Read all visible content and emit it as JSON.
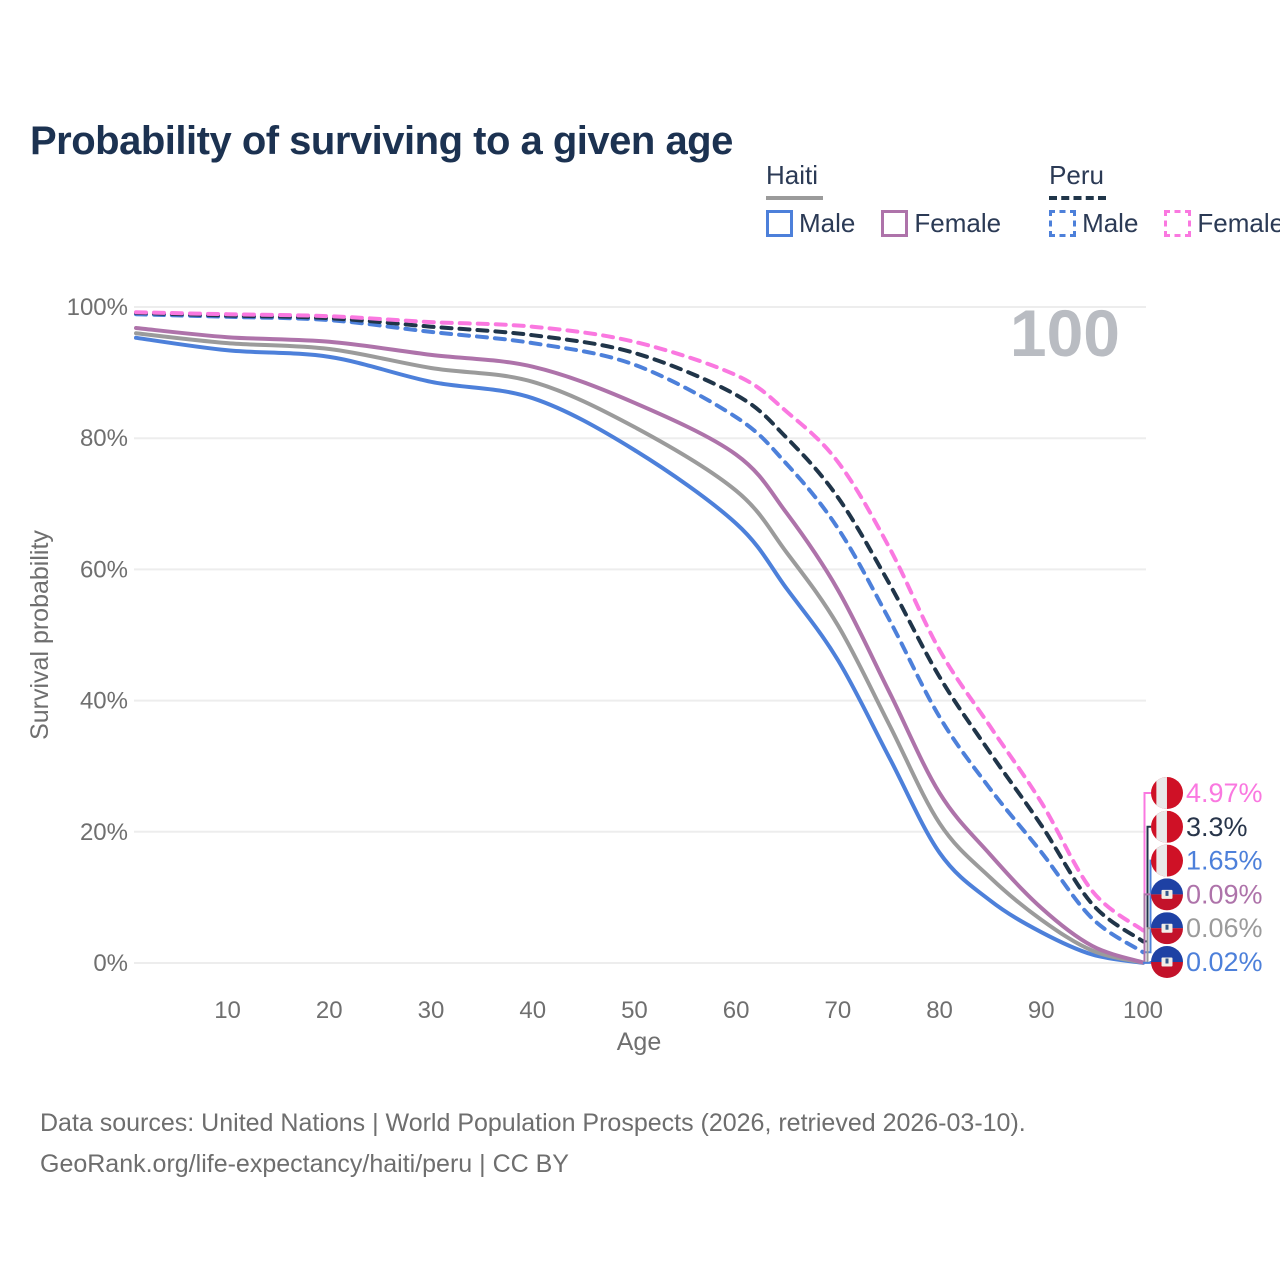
{
  "title": "Probability of surviving to a given age",
  "watermark": "100",
  "legend": {
    "groups": [
      {
        "label": "Haiti",
        "line_style": "solid",
        "line_color": "#9b9b9b",
        "items": [
          {
            "label": "Male",
            "style": "solid",
            "color": "#4d80da"
          },
          {
            "label": "Female",
            "style": "solid",
            "color": "#ae73aa"
          }
        ]
      },
      {
        "label": "Peru",
        "line_style": "dashed",
        "line_color": "#203549",
        "items": [
          {
            "label": "Male",
            "style": "dashed",
            "color": "#4d80da"
          },
          {
            "label": "Female",
            "style": "dashed",
            "color": "#fa78e0"
          }
        ]
      }
    ]
  },
  "footer": {
    "line1": "Data sources: United Nations | World Population Prospects (2026, retrieved 2026-03-10).",
    "line2": "GeoRank.org/life-expectancy/haiti/peru | CC BY"
  },
  "colors": {
    "title": "#1c3251",
    "axis_text": "#6f6f6f",
    "gridline": "#ededed",
    "watermark": "#b9bcc2",
    "haiti_male": "#4d80da",
    "haiti_total": "#9b9b9b",
    "haiti_female": "#ae73aa",
    "peru_male": "#4d80da",
    "peru_total": "#203549",
    "peru_female": "#fa78e0",
    "flag_peru_red": "#cf1126",
    "flag_peru_white": "#e9e9e9",
    "flag_haiti_blue": "#1e41a4",
    "flag_haiti_red": "#c3122a"
  },
  "chart_data": {
    "type": "line",
    "title": "Probability of surviving to a given age",
    "xlabel": "Age",
    "ylabel": "Survival probability",
    "x_range": [
      1,
      100
    ],
    "y_range": [
      0,
      100
    ],
    "grid": "horizontal",
    "legend_position": "top-right",
    "x_ticks": [
      10,
      20,
      30,
      40,
      50,
      60,
      70,
      80,
      90,
      100
    ],
    "y_ticks": [
      {
        "value": 0,
        "label": "0%"
      },
      {
        "value": 20,
        "label": "20%"
      },
      {
        "value": 40,
        "label": "40%"
      },
      {
        "value": 60,
        "label": "60%"
      },
      {
        "value": 80,
        "label": "80%"
      },
      {
        "value": 100,
        "label": "100%"
      }
    ],
    "x": [
      1,
      10,
      20,
      30,
      40,
      50,
      60,
      65,
      70,
      75,
      80,
      85,
      90,
      95,
      100
    ],
    "series": [
      {
        "name": "Haiti Male",
        "country": "Haiti",
        "sex": "Male",
        "style": "solid",
        "color": "#4d80da",
        "flag": "haiti",
        "end_label": "0.02%",
        "end_label_color": "#4d80da",
        "values": [
          95.3,
          93.4,
          92.4,
          88.6,
          86.1,
          78.2,
          67.0,
          57.0,
          46.2,
          31.5,
          16.8,
          9.5,
          4.7,
          1.3,
          0.02
        ]
      },
      {
        "name": "Haiti Both sexes",
        "country": "Haiti",
        "sex": "Both",
        "style": "solid",
        "color": "#9b9b9b",
        "flag": "haiti",
        "end_label": "0.06%",
        "end_label_color": "#9b9b9b",
        "values": [
          96.0,
          94.5,
          93.6,
          90.7,
          88.6,
          81.7,
          72.0,
          62.5,
          51.5,
          36.5,
          21.3,
          13.0,
          6.6,
          1.9,
          0.06
        ]
      },
      {
        "name": "Haiti Female",
        "country": "Haiti",
        "sex": "Female",
        "style": "solid",
        "color": "#ae73aa",
        "flag": "haiti",
        "end_label": "0.09%",
        "end_label_color": "#ae73aa",
        "values": [
          96.8,
          95.4,
          94.7,
          92.7,
          90.9,
          85.4,
          77.5,
          68.5,
          56.9,
          41.5,
          25.9,
          16.5,
          8.4,
          2.6,
          0.09
        ]
      },
      {
        "name": "Peru Male",
        "country": "Peru",
        "sex": "Male",
        "style": "dashed",
        "color": "#4d80da",
        "flag": "peru",
        "end_label": "1.65%",
        "end_label_color": "#4d80da",
        "values": [
          98.9,
          98.5,
          98.0,
          96.2,
          94.5,
          91.2,
          83.2,
          76.0,
          66.3,
          52.5,
          37.5,
          26.5,
          16.9,
          6.8,
          1.65
        ]
      },
      {
        "name": "Peru Both sexes",
        "country": "Peru",
        "sex": "Both",
        "style": "dashed",
        "color": "#203549",
        "flag": "peru",
        "end_label": "3.3%",
        "end_label_color": "#28354a",
        "values": [
          99.1,
          98.7,
          98.3,
          97.0,
          95.7,
          93.0,
          86.6,
          80.0,
          71.0,
          58.0,
          43.6,
          32.0,
          21.0,
          9.0,
          3.3
        ]
      },
      {
        "name": "Peru Female",
        "country": "Peru",
        "sex": "Female",
        "style": "dashed",
        "color": "#fa78e0",
        "flag": "peru",
        "end_label": "4.97%",
        "end_label_color": "#fa78e0",
        "values": [
          99.2,
          98.9,
          98.6,
          97.7,
          97.0,
          94.7,
          89.6,
          84.0,
          76.4,
          63.5,
          47.7,
          36.0,
          24.5,
          11.0,
          4.97
        ]
      }
    ]
  }
}
